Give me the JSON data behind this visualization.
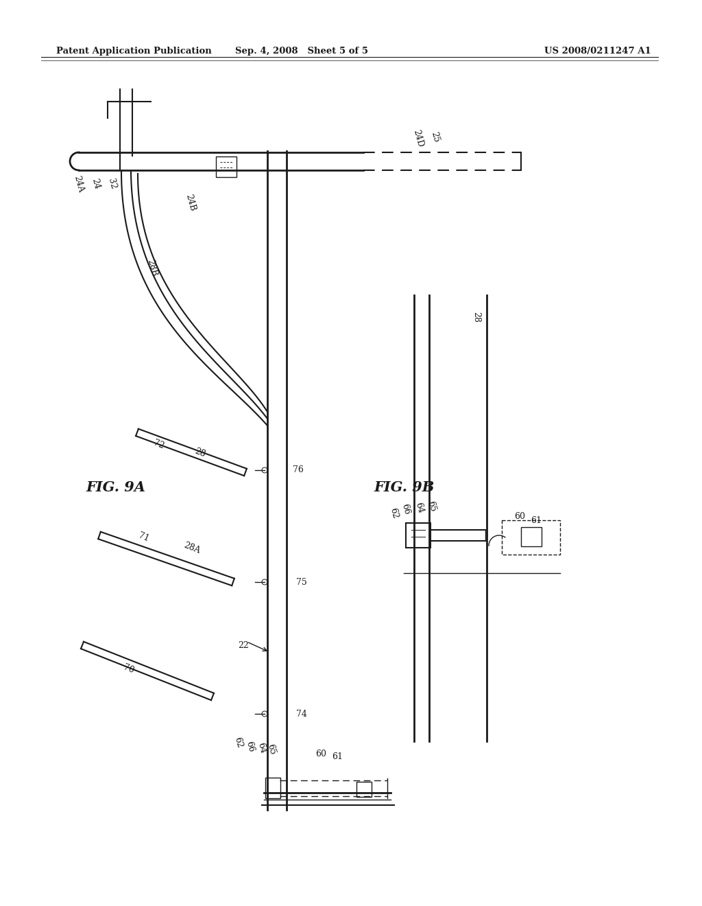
{
  "bg_color": "#ffffff",
  "line_color": "#1a1a1a",
  "header_left": "Patent Application Publication",
  "header_mid": "Sep. 4, 2008   Sheet 5 of 5",
  "header_right": "US 2008/0211247 A1",
  "fig9a_label": "FIG. 9A",
  "fig9b_label": "FIG. 9B"
}
